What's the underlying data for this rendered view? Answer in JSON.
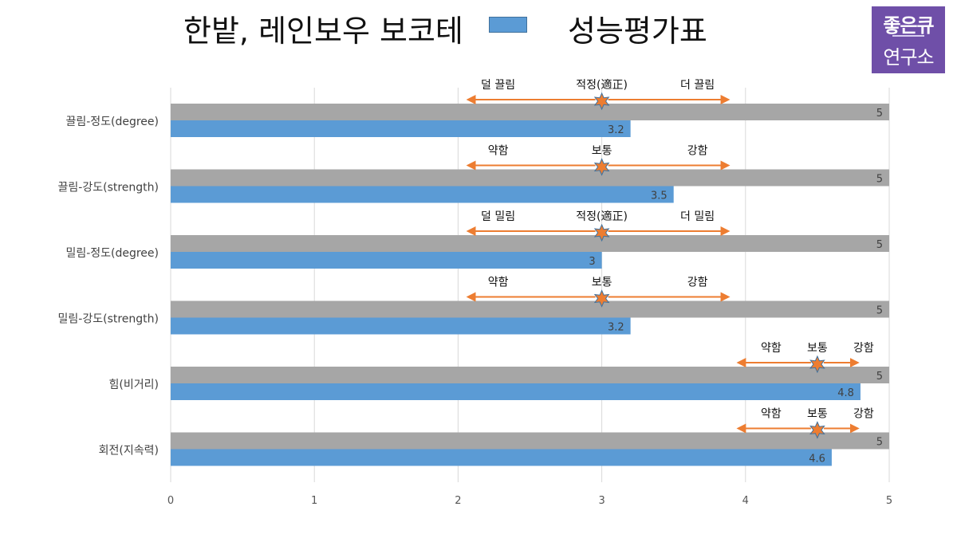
{
  "header": {
    "title": "한밭, 레인보우 보코테",
    "legend_label": "성능평가표"
  },
  "logo": {
    "line1": "좋은큐",
    "line2": "연구소"
  },
  "colors": {
    "max_bar": "#a6a6a6",
    "value_bar": "#5b9bd5",
    "arrow": "#ed7d31",
    "star": "#ed7d31"
  },
  "chart_data": {
    "type": "bar",
    "orientation": "horizontal",
    "categories": [
      "끌림-정도(degree)",
      "끌림-강도(strength)",
      "밀림-정도(degree)",
      "밀림-강도(strength)",
      "힘(비거리)",
      "회전(지속력)"
    ],
    "series": [
      {
        "name": "",
        "values": [
          5,
          5,
          5,
          5,
          5,
          5
        ]
      },
      {
        "name": "성능평가표",
        "values": [
          3.2,
          3.5,
          3,
          3.2,
          4.8,
          4.6
        ]
      }
    ],
    "xlim": [
      0,
      5
    ],
    "x_ticks": [
      "0",
      "1",
      "2",
      "3",
      "4",
      "5"
    ],
    "grid": true,
    "legend_position": "top",
    "annotations": [
      {
        "left": "덜 끌림",
        "center": "적정(適正)",
        "right": "더 끌림",
        "marker": 3,
        "range": [
          2.07,
          3.88
        ]
      },
      {
        "left": "약함",
        "center": "보통",
        "right": "강함",
        "marker": 3,
        "range": [
          2.07,
          3.88
        ]
      },
      {
        "left": "덜 밀림",
        "center": "적정(適正)",
        "right": "더 밀림",
        "marker": 3,
        "range": [
          2.07,
          3.88
        ]
      },
      {
        "left": "약함",
        "center": "보통",
        "right": "강함",
        "marker": 3,
        "range": [
          2.07,
          3.88
        ]
      },
      {
        "left": "약함",
        "center": "보통",
        "right": "강함",
        "marker": 4.5,
        "range": [
          3.95,
          4.78
        ]
      },
      {
        "left": "약함",
        "center": "보통",
        "right": "강함",
        "marker": 4.5,
        "range": [
          3.95,
          4.78
        ]
      }
    ]
  }
}
